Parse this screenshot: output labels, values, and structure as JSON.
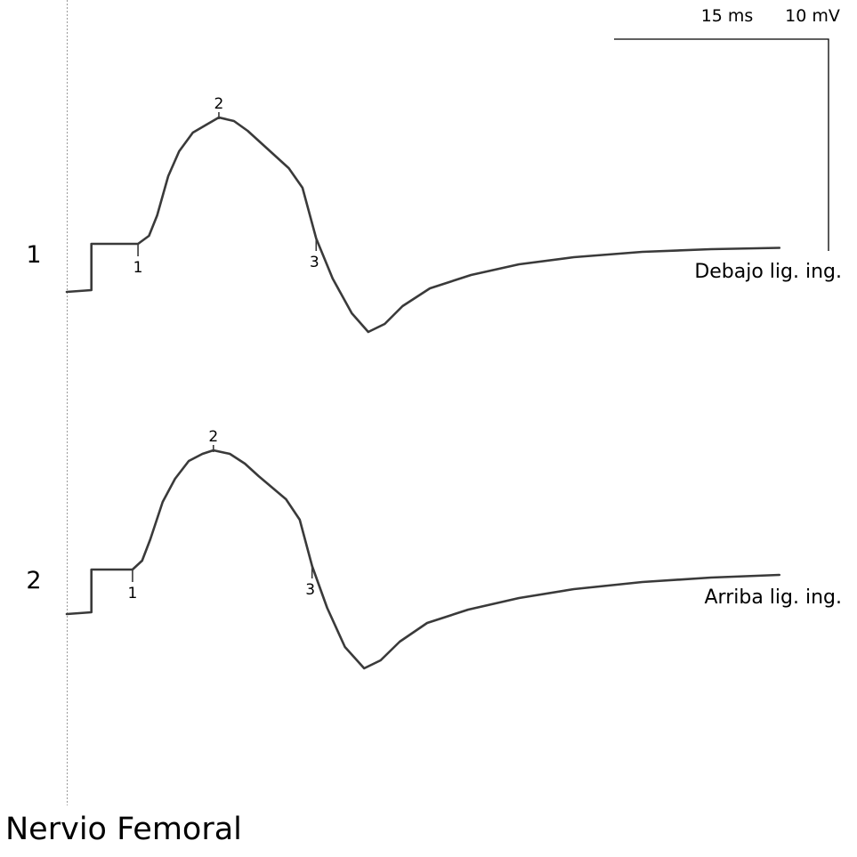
{
  "title": "Nervio Femoral",
  "scale": {
    "time_label": "15 ms",
    "amplitude_label": "10 mV"
  },
  "chart_data": {
    "type": "line",
    "title": "Nervio Femoral",
    "scale": {
      "time": "15 ms",
      "amplitude": "10 mV"
    },
    "traces": [
      {
        "index": "1",
        "name": "Debajo lig. ing.",
        "markers": [
          {
            "label": "1",
            "t_ms": 5.2
          },
          {
            "label": "2",
            "t_ms": 11.1
          },
          {
            "label": "3",
            "t_ms": 18.2
          }
        ],
        "points": [
          [
            0,
            -5.4
          ],
          [
            1.8,
            -5.2
          ],
          [
            1.8,
            0
          ],
          [
            5.2,
            0
          ],
          [
            6.0,
            0.9
          ],
          [
            6.6,
            3.2
          ],
          [
            7.4,
            7.6
          ],
          [
            8.2,
            10.4
          ],
          [
            9.2,
            12.5
          ],
          [
            10.2,
            13.4
          ],
          [
            11.1,
            14.2
          ],
          [
            12.2,
            13.8
          ],
          [
            13.2,
            12.7
          ],
          [
            14.2,
            11.3
          ],
          [
            15.2,
            9.9
          ],
          [
            16.2,
            8.5
          ],
          [
            17.2,
            6.3
          ],
          [
            18.2,
            0.6
          ],
          [
            19.4,
            -3.9
          ],
          [
            20.8,
            -7.8
          ],
          [
            22.0,
            -9.9
          ],
          [
            23.2,
            -9.0
          ],
          [
            24.5,
            -7.0
          ],
          [
            26.5,
            -5.0
          ],
          [
            29.5,
            -3.5
          ],
          [
            33.0,
            -2.3
          ],
          [
            37.0,
            -1.5
          ],
          [
            42.0,
            -0.9
          ],
          [
            47.0,
            -0.6
          ],
          [
            52.0,
            -0.45
          ]
        ]
      },
      {
        "index": "2",
        "name": "Arriba lig. ing.",
        "markers": [
          {
            "label": "1",
            "t_ms": 4.8
          },
          {
            "label": "2",
            "t_ms": 10.7
          },
          {
            "label": "3",
            "t_ms": 17.9
          }
        ],
        "points": [
          [
            0,
            -5.0
          ],
          [
            1.8,
            -4.8
          ],
          [
            1.8,
            0
          ],
          [
            4.8,
            0
          ],
          [
            5.5,
            1.0
          ],
          [
            6.1,
            3.4
          ],
          [
            7.0,
            7.6
          ],
          [
            7.9,
            10.2
          ],
          [
            8.9,
            12.2
          ],
          [
            9.9,
            13.0
          ],
          [
            10.7,
            13.4
          ],
          [
            11.9,
            13.0
          ],
          [
            13.0,
            11.9
          ],
          [
            14.0,
            10.5
          ],
          [
            15.0,
            9.2
          ],
          [
            16.0,
            7.9
          ],
          [
            17.0,
            5.6
          ],
          [
            17.9,
            0.4
          ],
          [
            19.0,
            -4.3
          ],
          [
            20.3,
            -8.7
          ],
          [
            21.7,
            -11.1
          ],
          [
            22.9,
            -10.2
          ],
          [
            24.3,
            -8.1
          ],
          [
            26.3,
            -6.0
          ],
          [
            29.3,
            -4.5
          ],
          [
            33.0,
            -3.2
          ],
          [
            37.0,
            -2.2
          ],
          [
            42.0,
            -1.4
          ],
          [
            47.0,
            -0.9
          ],
          [
            52.0,
            -0.6
          ]
        ]
      }
    ]
  }
}
